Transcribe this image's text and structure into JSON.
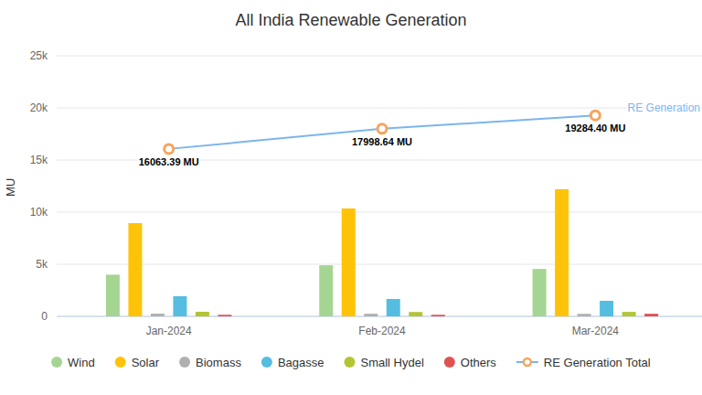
{
  "chart_data": {
    "type": "bar",
    "title": "All India Renewable Generation",
    "y_label": "MU",
    "categories": [
      "Jan-2024",
      "Feb-2024",
      "Mar-2024"
    ],
    "series": [
      {
        "name": "Wind",
        "color": "#a5d592",
        "values": [
          4000,
          4900,
          4550
        ]
      },
      {
        "name": "Solar",
        "color": "#fec309",
        "values": [
          8950,
          10350,
          12200
        ]
      },
      {
        "name": "Biomass",
        "color": "#b0b0b0",
        "values": [
          260,
          250,
          240
        ]
      },
      {
        "name": "Bagasse",
        "color": "#55bde0",
        "values": [
          1930,
          1670,
          1490
        ]
      },
      {
        "name": "Small Hydel",
        "color": "#b4c534",
        "values": [
          440,
          420,
          430
        ]
      },
      {
        "name": "Others",
        "color": "#e05252",
        "values": [
          150,
          150,
          250
        ]
      },
      {
        "name": "RE Generation Total",
        "type": "line",
        "color": "#7cb5ec",
        "marker": "circle",
        "values": [
          16063.39,
          17998.64,
          19284.4
        ],
        "data_labels": true,
        "value_labels": [
          "16063.39 MU",
          "17998.64 MU",
          "19284.40 MU"
        ]
      }
    ],
    "annotations": [
      "RE Generation"
    ],
    "ylim": [
      0,
      25000
    ],
    "yticks": [
      0,
      {
        "value": 5000,
        "label": "5k"
      },
      {
        "value": 10000,
        "label": "10k"
      },
      {
        "value": 15000,
        "label": "15k"
      },
      {
        "value": 20000,
        "label": "20k"
      },
      {
        "value": 25000,
        "label": "25k"
      }
    ],
    "grid": true,
    "legend": "bottom"
  }
}
